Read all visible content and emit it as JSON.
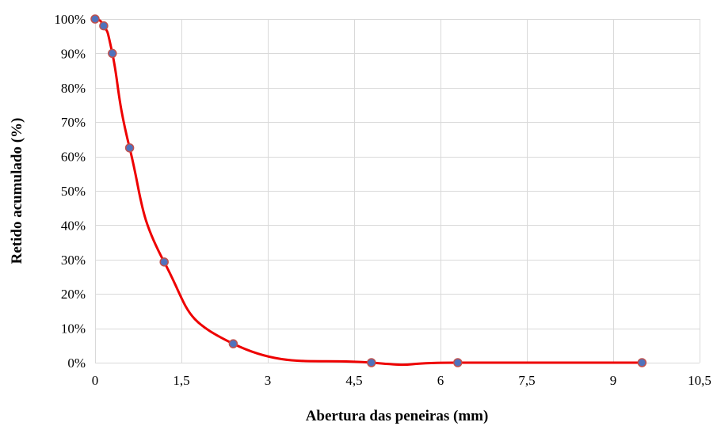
{
  "chart_data": {
    "type": "scatter",
    "xlabel": "Abertura das peneiras (mm)",
    "ylabel": "Retido acumulado (%)",
    "xlim": [
      0,
      10.5
    ],
    "ylim": [
      0,
      100
    ],
    "x_ticks": [
      {
        "value": 0,
        "label": "0"
      },
      {
        "value": 1.5,
        "label": "1,5"
      },
      {
        "value": 3,
        "label": "3"
      },
      {
        "value": 4.5,
        "label": "4,5"
      },
      {
        "value": 6,
        "label": "6"
      },
      {
        "value": 7.5,
        "label": "7,5"
      },
      {
        "value": 9,
        "label": "9"
      },
      {
        "value": 10.5,
        "label": "10,5"
      }
    ],
    "y_ticks": [
      {
        "value": 0,
        "label": "0%"
      },
      {
        "value": 10,
        "label": "10%"
      },
      {
        "value": 20,
        "label": "20%"
      },
      {
        "value": 30,
        "label": "30%"
      },
      {
        "value": 40,
        "label": "40%"
      },
      {
        "value": 50,
        "label": "50%"
      },
      {
        "value": 60,
        "label": "60%"
      },
      {
        "value": 70,
        "label": "70%"
      },
      {
        "value": 80,
        "label": "80%"
      },
      {
        "value": 90,
        "label": "90%"
      },
      {
        "value": 100,
        "label": "100%"
      }
    ],
    "grid": true,
    "smoothed": true,
    "series": [
      {
        "x": [
          0,
          0.15,
          0.3,
          0.6,
          1.2,
          2.4,
          4.8,
          6.3,
          9.5
        ],
        "y": [
          100,
          98,
          90,
          62.5,
          29.3,
          5.5,
          0,
          0,
          0
        ],
        "line_color": "#ee0000",
        "marker_color": "#4f72bd",
        "marker_edge": "#c0504d"
      }
    ]
  }
}
